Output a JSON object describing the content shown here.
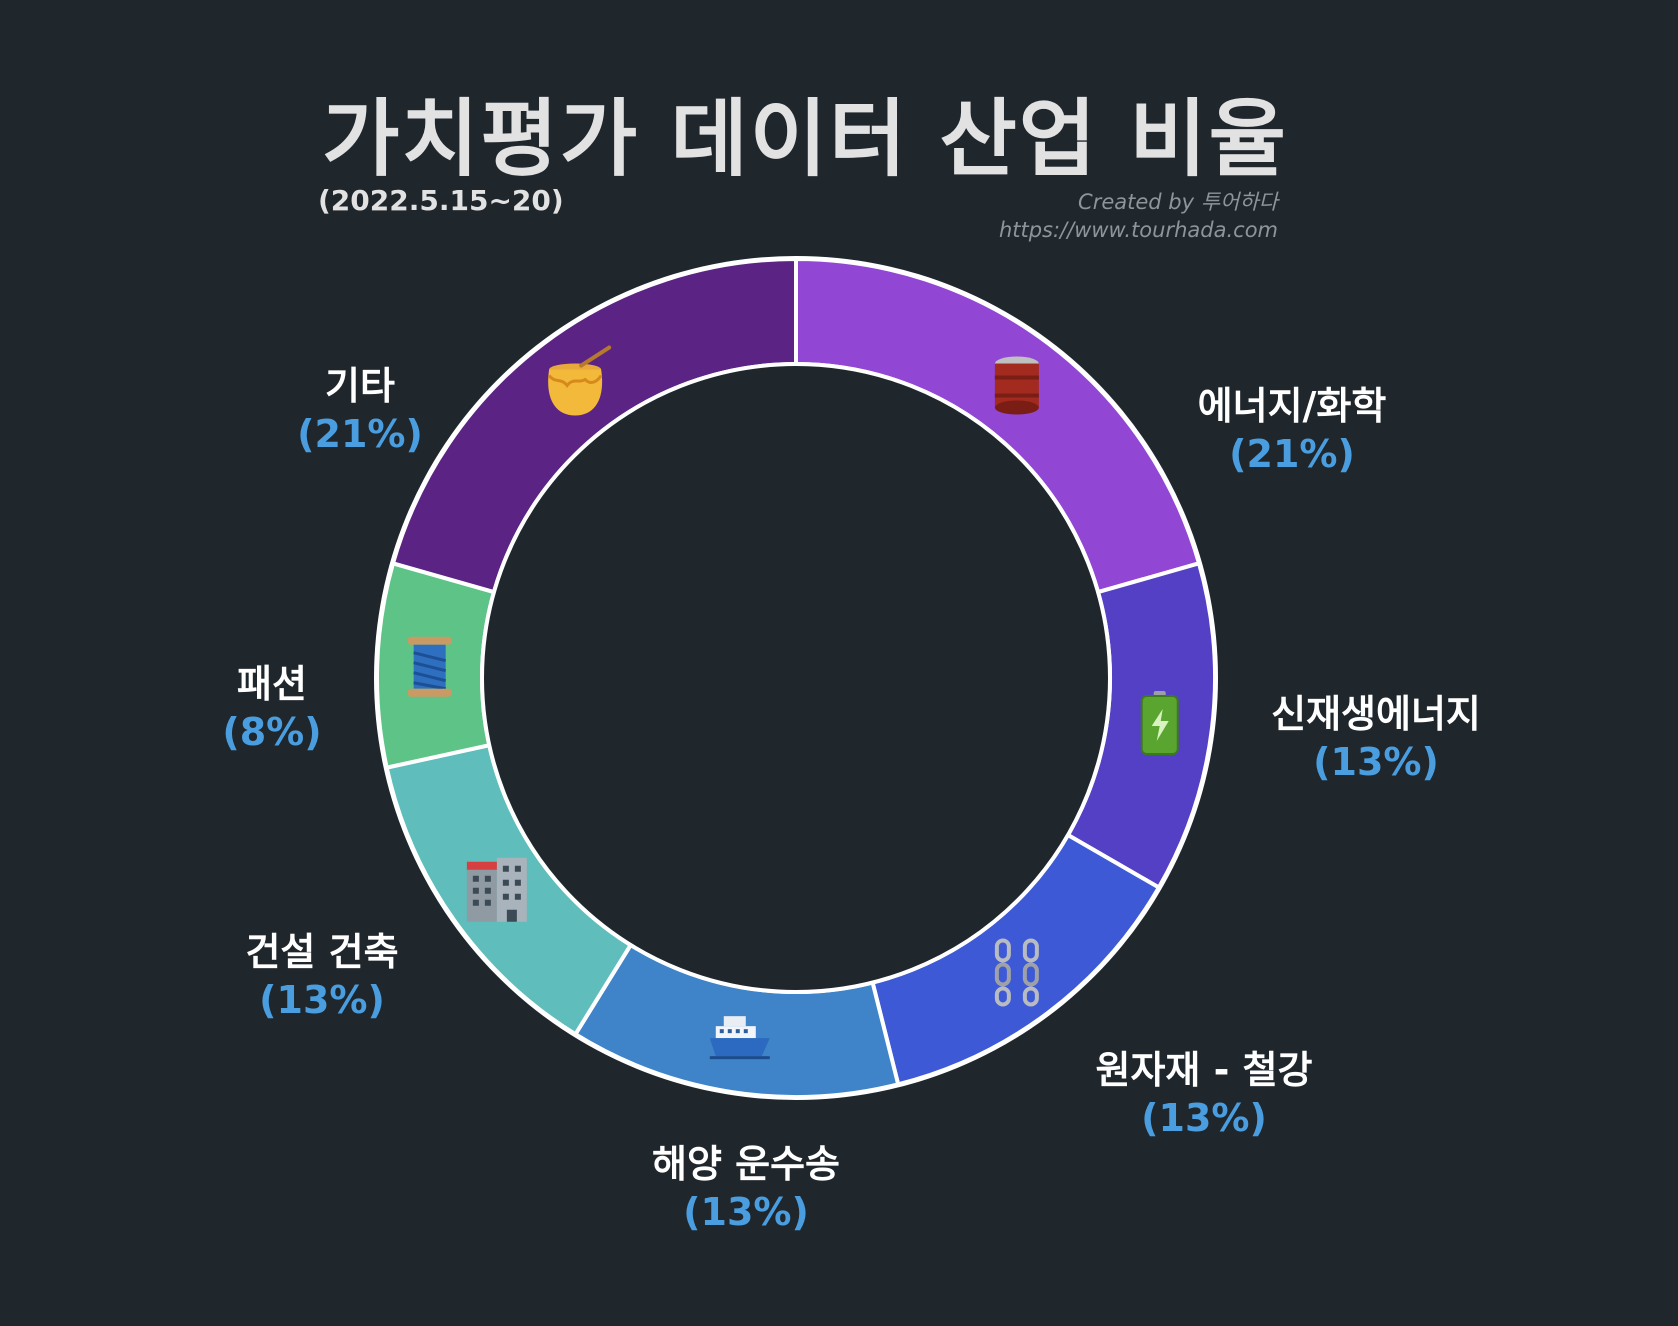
{
  "title": "가치평가 데이터 산업 비율",
  "subtitle": "(2022.5.15~20)",
  "credit": {
    "line1": "Created by 투어하다",
    "line2": "https://www.tourhada.com"
  },
  "chart_data": {
    "type": "pie",
    "donut": true,
    "slices": [
      {
        "label": "에너지/화학",
        "value": 21,
        "pct_label": "(21%)",
        "color": "#9146d4",
        "icon": "oil-drum-icon"
      },
      {
        "label": "신재생에너지",
        "value": 13,
        "pct_label": "(13%)",
        "color": "#5440c4",
        "icon": "battery-icon"
      },
      {
        "label": "원자재 - 철강",
        "value": 13,
        "pct_label": "(13%)",
        "color": "#3d59d6",
        "icon": "chains-icon"
      },
      {
        "label": "해양 운수송",
        "value": 13,
        "pct_label": "(13%)",
        "color": "#3f84c8",
        "icon": "ship-icon"
      },
      {
        "label": "건설 건축",
        "value": 13,
        "pct_label": "(13%)",
        "color": "#5fbdbb",
        "icon": "office-building-icon"
      },
      {
        "label": "패션",
        "value": 8,
        "pct_label": "(8%)",
        "color": "#5ec387",
        "icon": "thread-spool-icon"
      },
      {
        "label": "기타",
        "value": 21,
        "pct_label": "(21%)",
        "color": "#5b2384",
        "icon": "honey-pot-icon"
      }
    ]
  }
}
